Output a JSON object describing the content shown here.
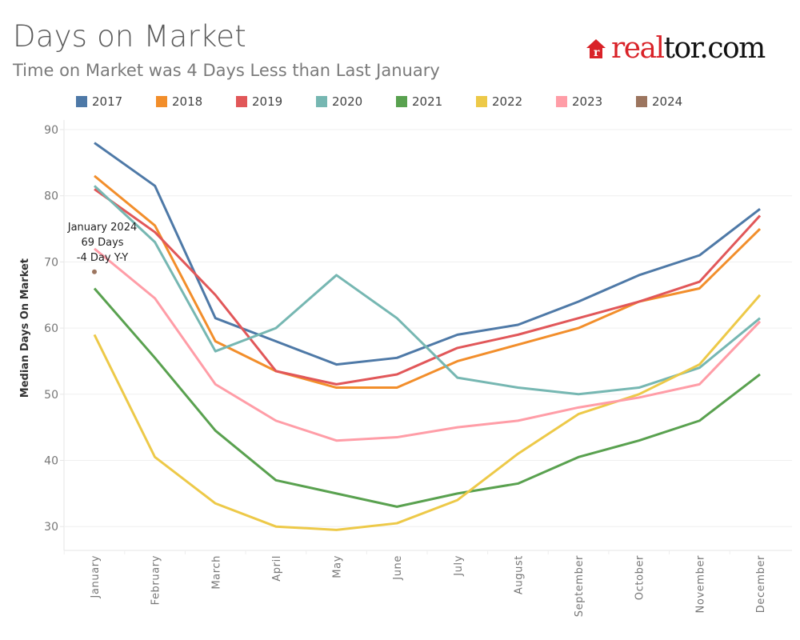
{
  "header": {
    "title": "Days on Market",
    "subtitle": "Time on Market was 4 Days Less than Last January",
    "logo": {
      "part1": "real",
      "part2": "tor.com",
      "house_letter": "r",
      "brand_color": "#d92228"
    }
  },
  "chart_data": {
    "type": "line",
    "title": "Days on Market",
    "subtitle": "Time on Market was 4 Days Less than Last January",
    "xlabel": "",
    "ylabel": "Median Days On Market",
    "ylim": [
      26.5,
      91
    ],
    "yticks": [
      30,
      40,
      50,
      60,
      70,
      80,
      90
    ],
    "grid": true,
    "legend_position": "top",
    "categories": [
      "January",
      "February",
      "March",
      "April",
      "May",
      "June",
      "July",
      "August",
      "September",
      "October",
      "November",
      "December"
    ],
    "series": [
      {
        "name": "2017",
        "color": "#4e79a7",
        "values": [
          88,
          81.5,
          61.5,
          58,
          54.5,
          55.5,
          59,
          60.5,
          64,
          68,
          71,
          78
        ]
      },
      {
        "name": "2018",
        "color": "#f28e2b",
        "values": [
          83,
          75.5,
          58,
          53.5,
          51,
          51,
          55,
          57.5,
          60,
          64,
          66,
          75
        ]
      },
      {
        "name": "2019",
        "color": "#e15759",
        "values": [
          81,
          74.5,
          65,
          53.5,
          51.5,
          53,
          57,
          59,
          61.5,
          64,
          67,
          77
        ]
      },
      {
        "name": "2020",
        "color": "#76b7b2",
        "values": [
          81.5,
          73,
          56.5,
          60,
          68,
          61.5,
          52.5,
          51,
          50,
          51,
          54,
          61.5
        ]
      },
      {
        "name": "2021",
        "color": "#59a14f",
        "values": [
          66,
          55.5,
          44.5,
          37,
          35,
          33,
          35,
          36.5,
          40.5,
          43,
          46,
          53
        ]
      },
      {
        "name": "2022",
        "color": "#edc948",
        "values": [
          59,
          40.5,
          33.5,
          30,
          29.5,
          30.5,
          34,
          41,
          47,
          50,
          54.5,
          65
        ]
      },
      {
        "name": "2023",
        "color": "#ff9da7",
        "values": [
          72,
          64.5,
          51.5,
          46,
          43,
          43.5,
          45,
          46,
          48,
          49.5,
          51.5,
          61
        ]
      },
      {
        "name": "2024",
        "color": "#9c755f",
        "values": [
          68.5,
          null,
          null,
          null,
          null,
          null,
          null,
          null,
          null,
          null,
          null,
          null
        ]
      }
    ],
    "annotations": [
      {
        "series": "2024",
        "category": "January",
        "lines": [
          "January 2024",
          "69 Days",
          "-4 Day Y-Y"
        ]
      }
    ]
  }
}
